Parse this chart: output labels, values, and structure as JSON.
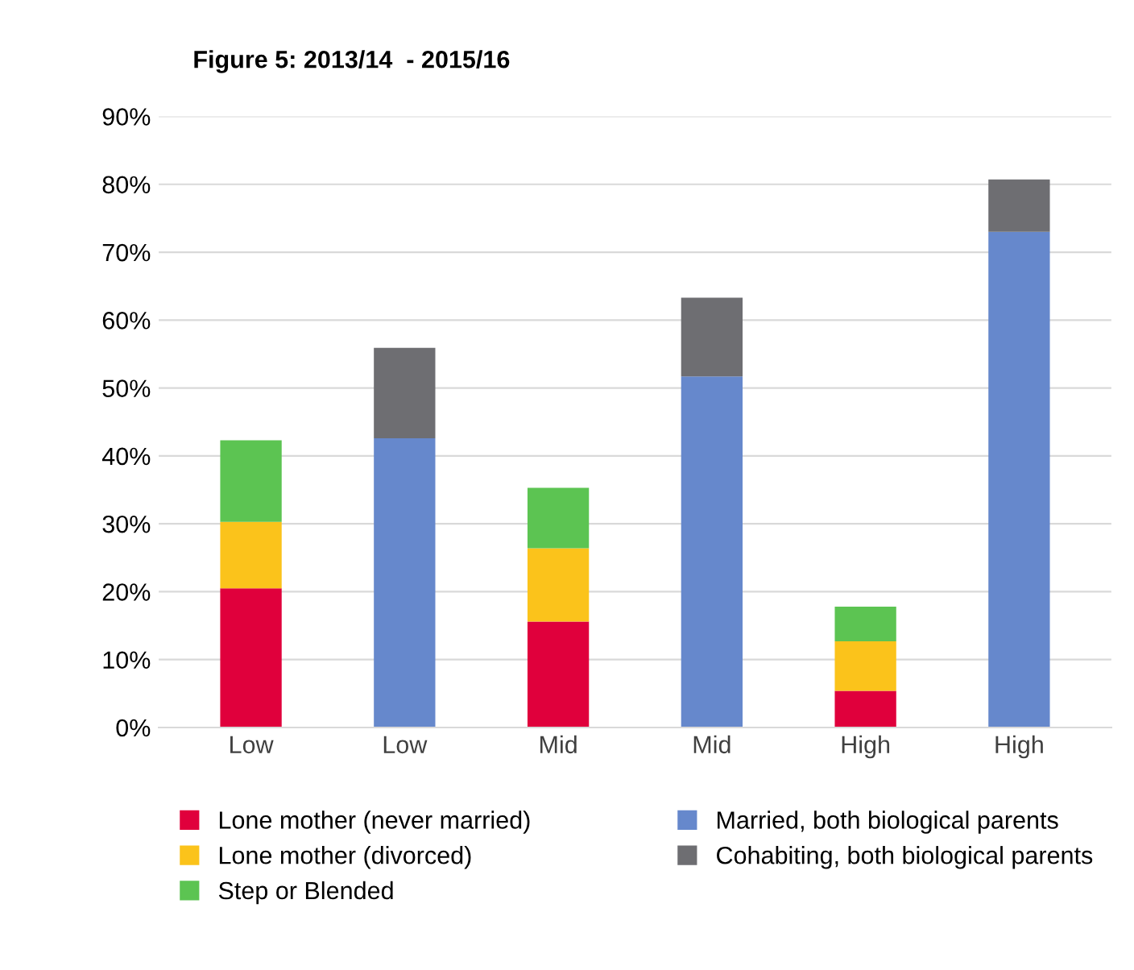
{
  "chart_data": {
    "type": "bar",
    "stacked": true,
    "title": "Figure 5: 2013/14  - 2015/16",
    "categories": [
      "Low",
      "Low",
      "Mid",
      "Mid",
      "High",
      "High"
    ],
    "series": [
      {
        "name": "Lone mother (never married)",
        "color": "#e0003c",
        "values": [
          20.5,
          null,
          15.6,
          null,
          5.4,
          null
        ]
      },
      {
        "name": "Lone mother (divorced)",
        "color": "#fbc31b",
        "values": [
          9.8,
          null,
          10.8,
          null,
          7.3,
          null
        ]
      },
      {
        "name": "Step or Blended",
        "color": "#5cc452",
        "values": [
          12,
          null,
          8.9,
          null,
          5.1,
          null
        ]
      },
      {
        "name": "Married, both biological parents",
        "color": "#6688cc",
        "values": [
          null,
          42.6,
          null,
          51.7,
          null,
          73
        ]
      },
      {
        "name": "Cohabiting, both biological parents",
        "color": "#6e6e72",
        "values": [
          null,
          13.3,
          null,
          11.6,
          null,
          7.7
        ]
      }
    ],
    "ylim": [
      0,
      90
    ],
    "yticks": [
      {
        "value": 0,
        "label": "0%"
      },
      {
        "value": 10,
        "label": "10%"
      },
      {
        "value": 20,
        "label": "20%"
      },
      {
        "value": 30,
        "label": "30%"
      },
      {
        "value": 40,
        "label": "40%"
      },
      {
        "value": 50,
        "label": "50%"
      },
      {
        "value": 60,
        "label": "60%"
      },
      {
        "value": 70,
        "label": "70%"
      },
      {
        "value": 80,
        "label": "80%"
      },
      {
        "value": 90,
        "label": "90%"
      }
    ],
    "grid": "y",
    "legend": "bottom"
  }
}
